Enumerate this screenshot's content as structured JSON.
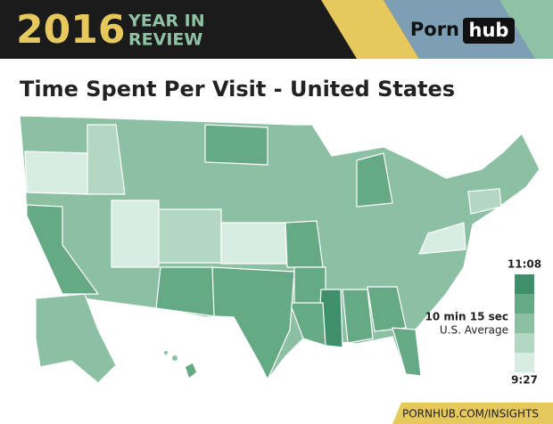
{
  "header": {
    "year": "2016",
    "tagline": [
      "YEAR IN",
      "REVIEW"
    ],
    "logo": {
      "left": "Porn",
      "right": "hub"
    }
  },
  "title": "Time Spent Per Visit - United States",
  "legend": {
    "max": "11:08",
    "min": "9:27",
    "average_value": "10 min 15 sec",
    "average_label": "U.S. Average",
    "colors": [
      "#3f8f6b",
      "#66a985",
      "#8cc0a3",
      "#b2d7c2",
      "#d8ede1"
    ]
  },
  "footer": "PORNHUB.COM/INSIGHTS"
}
